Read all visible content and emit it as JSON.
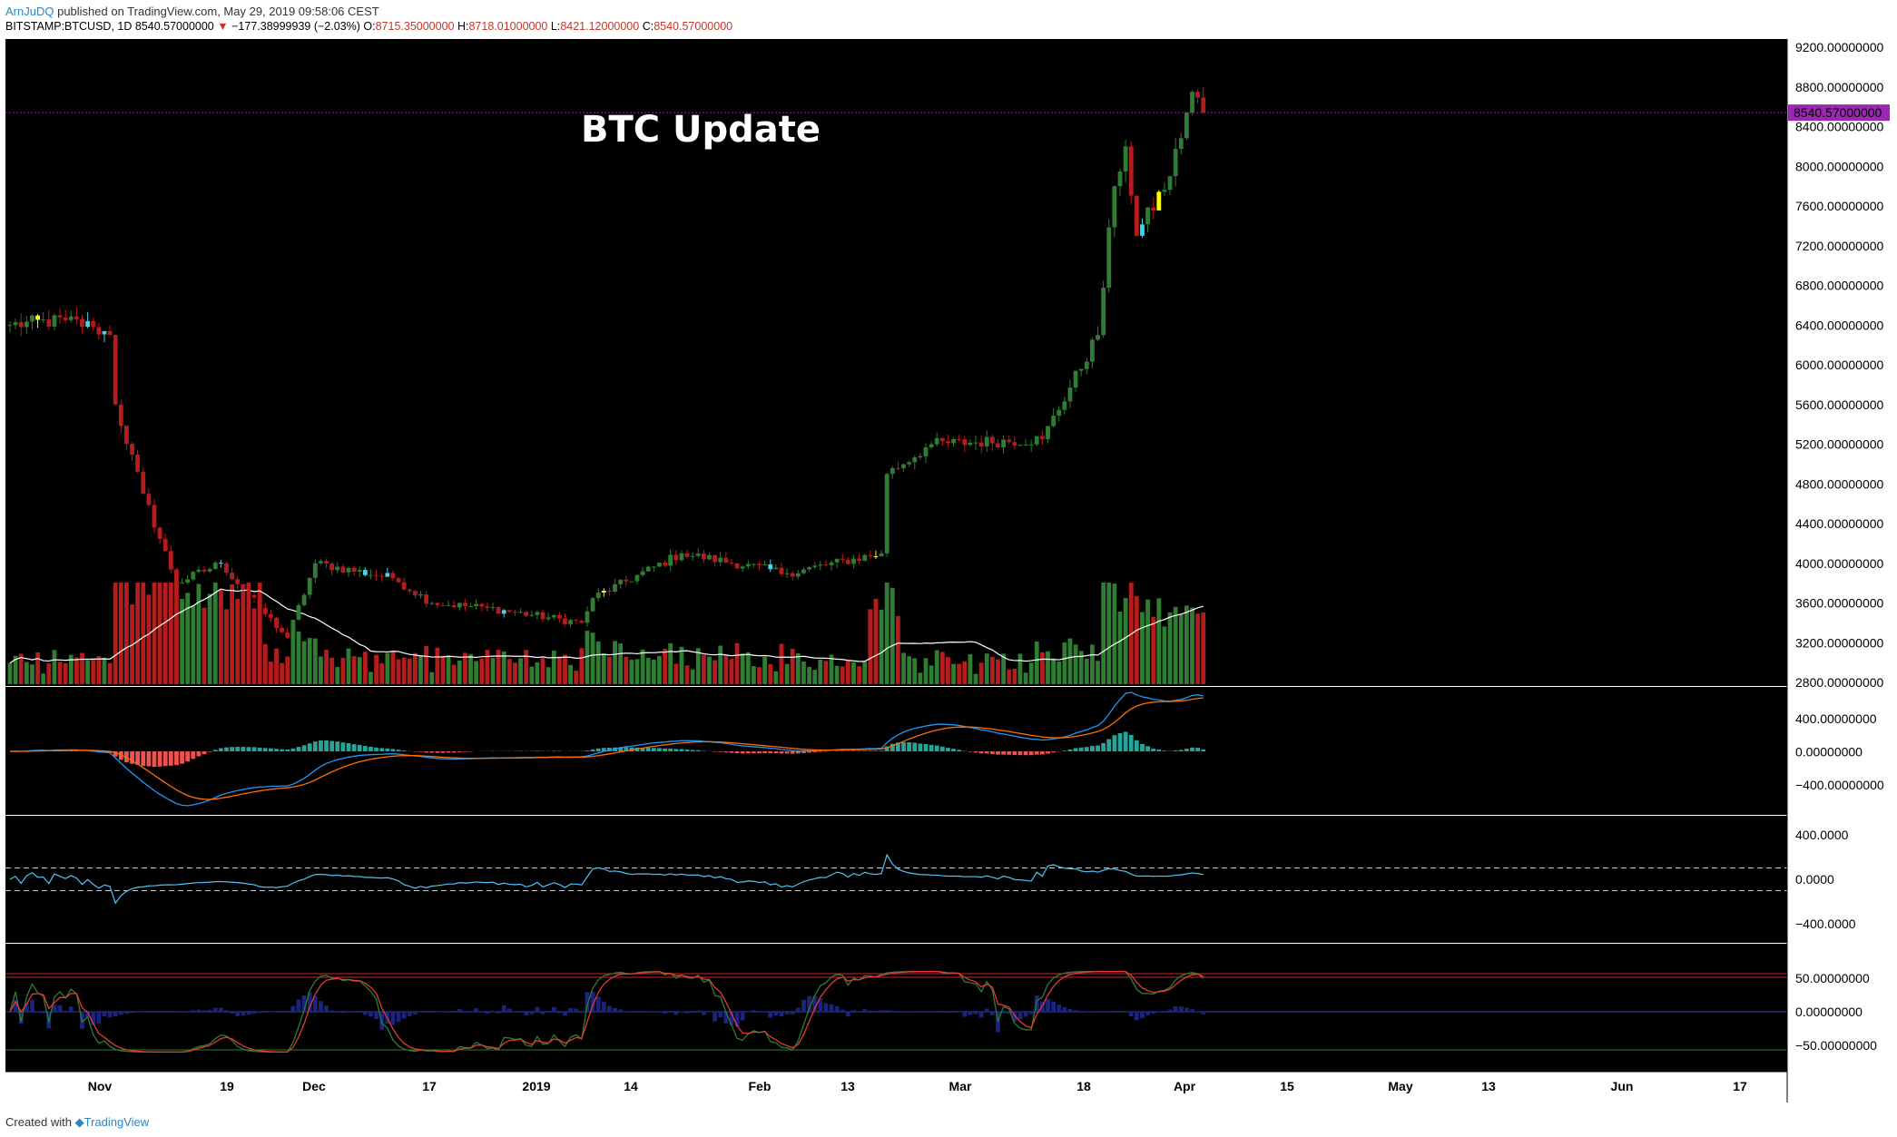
{
  "header": {
    "author": "ArnJuDQ",
    "published": "published on TradingView.com, May 29, 2019 09:58:06 CEST",
    "symbol": "BITSTAMP:BTCUSD, 1D",
    "last": "8540.57000000",
    "change": "−177.38999939 (−2.03%)",
    "o_label": "O:",
    "o": "8715.35000000",
    "h_label": "H:",
    "h": "8718.01000000",
    "l_label": "L:",
    "l": "8421.12000000",
    "c_label": "C:",
    "c": "8540.57000000"
  },
  "footer": {
    "created": "Created with",
    "brand": "TradingView"
  },
  "colors": {
    "background": "#000000",
    "up": "#2e7d32",
    "down": "#b71c1c",
    "cyan": "#4dd0e1",
    "yellow": "#ffff00",
    "price_line": "#9c27b0",
    "ma": "#ffffff",
    "macd": "#2196f3",
    "signal": "#ff6d00"
  },
  "chart_data": [
    {
      "type": "candlestick",
      "title": "BTC Update",
      "price_label": "8540.57000000",
      "ylim": [
        2800,
        9200
      ],
      "y_ticks": [
        "9200.00000000",
        "8800.00000000",
        "8400.00000000",
        "8000.00000000",
        "7600.00000000",
        "7200.00000000",
        "6800.00000000",
        "6400.00000000",
        "6000.00000000",
        "5600.00000000",
        "5200.00000000",
        "4800.00000000",
        "4400.00000000",
        "4000.00000000",
        "3600.00000000",
        "3200.00000000",
        "2800.00000000"
      ],
      "x_ticks": [
        "Nov",
        "19",
        "Dec",
        "17",
        "2019",
        "14",
        "Feb",
        "13",
        "Mar",
        "18",
        "Apr",
        "15",
        "May",
        "13",
        "Jun",
        "17"
      ],
      "close_approx": [
        [
          "2018-10-26",
          6400
        ],
        [
          "2018-11-05",
          6450
        ],
        [
          "2018-11-10",
          6380
        ],
        [
          "2018-11-13",
          6300
        ],
        [
          "2018-11-14",
          5600
        ],
        [
          "2018-11-19",
          4700
        ],
        [
          "2018-11-25",
          3800
        ],
        [
          "2018-12-03",
          4000
        ],
        [
          "2018-12-10",
          3550
        ],
        [
          "2018-12-15",
          3250
        ],
        [
          "2018-12-20",
          4000
        ],
        [
          "2019-01-03",
          3850
        ],
        [
          "2019-01-10",
          3600
        ],
        [
          "2019-01-20",
          3550
        ],
        [
          "2019-02-06",
          3400
        ],
        [
          "2019-02-08",
          3650
        ],
        [
          "2019-02-24",
          4100
        ],
        [
          "2019-03-15",
          3900
        ],
        [
          "2019-04-01",
          4100
        ],
        [
          "2019-04-02",
          4900
        ],
        [
          "2019-04-10",
          5200
        ],
        [
          "2019-04-30",
          5250
        ],
        [
          "2019-05-10",
          6300
        ],
        [
          "2019-05-13",
          7800
        ],
        [
          "2019-05-15",
          8200
        ],
        [
          "2019-05-17",
          7300
        ],
        [
          "2019-05-23",
          7900
        ],
        [
          "2019-05-27",
          8750
        ],
        [
          "2019-05-29",
          8540
        ]
      ]
    },
    {
      "type": "line",
      "name": "MACD",
      "y_ticks": [
        "400.00000000",
        "0.00000000",
        "−400.00000000"
      ]
    },
    {
      "type": "line",
      "name": "CCI",
      "y_ticks": [
        "400.0000",
        "0.0000",
        "−400.0000"
      ]
    },
    {
      "type": "line",
      "name": "Oscillator",
      "y_ticks": [
        "50.00000000",
        "0.00000000",
        "−50.00000000"
      ]
    }
  ]
}
